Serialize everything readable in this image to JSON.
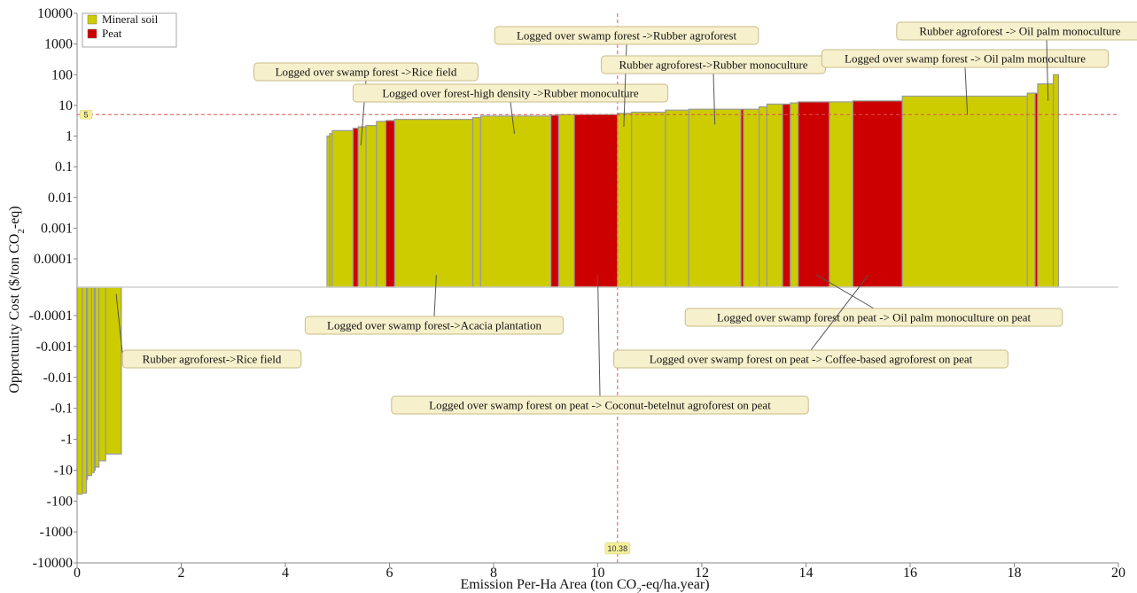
{
  "chart_data": {
    "type": "bar",
    "subtype": "marginal-abatement-cost-curve",
    "xlabel": "Emission Per-Ha Area (ton CO2-eq/ha.year)",
    "ylabel": "Opportunity Cost ($/ton CO2-eq)",
    "xlim": [
      0,
      20
    ],
    "x_ticks": [
      0,
      2,
      4,
      6,
      8,
      10,
      12,
      14,
      16,
      18,
      20
    ],
    "x_tick_labels": [
      "0",
      "2",
      "4",
      "6",
      "8",
      "10",
      "12",
      "14",
      "16",
      "18",
      "20"
    ],
    "y_scale": "symmetric-log",
    "y_ticks_positive": [
      "10000",
      "1000",
      "100",
      "10",
      "1",
      "0.1",
      "0.01",
      "0.001",
      "0.0001"
    ],
    "y_ticks_negative": [
      "-0.0001",
      "-0.001",
      "-0.01",
      "-0.1",
      "-1",
      "-10",
      "-100",
      "-1000",
      "-10000"
    ],
    "grid": false,
    "legend": {
      "position": "top-left",
      "entries": [
        {
          "name": "Mineral soil",
          "color": "#cccc00"
        },
        {
          "name": "Peat",
          "color": "#cc0000"
        }
      ]
    },
    "colors": {
      "mineral": "#cccc00",
      "peat": "#cc0000",
      "edge": "#999999",
      "reference": "#e05050"
    },
    "reference_lines": {
      "y": {
        "value": 5,
        "label": "5"
      },
      "x": {
        "value": 10.38,
        "label": "10.38"
      }
    },
    "bars": [
      {
        "x0": 0.0,
        "x1": 0.1,
        "y": -60,
        "soil": "mineral"
      },
      {
        "x0": 0.1,
        "x1": 0.18,
        "y": -55,
        "soil": "mineral"
      },
      {
        "x0": 0.18,
        "x1": 0.2,
        "y": -20,
        "soil": "peat"
      },
      {
        "x0": 0.2,
        "x1": 0.28,
        "y": -15,
        "soil": "mineral"
      },
      {
        "x0": 0.28,
        "x1": 0.33,
        "y": -12,
        "soil": "mineral"
      },
      {
        "x0": 0.33,
        "x1": 0.35,
        "y": -10,
        "soil": "peat"
      },
      {
        "x0": 0.35,
        "x1": 0.42,
        "y": -8,
        "soil": "mineral"
      },
      {
        "x0": 0.42,
        "x1": 0.55,
        "y": -5,
        "soil": "mineral"
      },
      {
        "x0": 0.55,
        "x1": 0.85,
        "y": -3,
        "soil": "mineral"
      },
      {
        "x0": 4.8,
        "x1": 4.85,
        "y": 1.0,
        "soil": "mineral"
      },
      {
        "x0": 4.85,
        "x1": 4.9,
        "y": 1.2,
        "soil": "mineral"
      },
      {
        "x0": 4.9,
        "x1": 5.3,
        "y": 1.5,
        "soil": "mineral"
      },
      {
        "x0": 5.3,
        "x1": 5.4,
        "y": 1.8,
        "soil": "peat"
      },
      {
        "x0": 5.4,
        "x1": 5.55,
        "y": 2.0,
        "soil": "mineral"
      },
      {
        "x0": 5.55,
        "x1": 5.75,
        "y": 2.2,
        "soil": "mineral"
      },
      {
        "x0": 5.75,
        "x1": 5.93,
        "y": 3.0,
        "soil": "mineral"
      },
      {
        "x0": 5.93,
        "x1": 6.1,
        "y": 3.2,
        "soil": "peat"
      },
      {
        "x0": 6.1,
        "x1": 7.6,
        "y": 3.5,
        "soil": "mineral"
      },
      {
        "x0": 7.6,
        "x1": 7.75,
        "y": 4.0,
        "soil": "mineral"
      },
      {
        "x0": 7.75,
        "x1": 9.1,
        "y": 4.5,
        "soil": "mineral"
      },
      {
        "x0": 9.1,
        "x1": 9.25,
        "y": 4.8,
        "soil": "peat"
      },
      {
        "x0": 9.25,
        "x1": 9.55,
        "y": 5.0,
        "soil": "mineral"
      },
      {
        "x0": 9.55,
        "x1": 10.38,
        "y": 5.0,
        "soil": "peat"
      },
      {
        "x0": 10.38,
        "x1": 10.65,
        "y": 5.5,
        "soil": "mineral"
      },
      {
        "x0": 10.65,
        "x1": 11.3,
        "y": 6.0,
        "soil": "mineral"
      },
      {
        "x0": 11.3,
        "x1": 11.75,
        "y": 7.0,
        "soil": "mineral"
      },
      {
        "x0": 11.75,
        "x1": 12.75,
        "y": 7.5,
        "soil": "mineral"
      },
      {
        "x0": 12.75,
        "x1": 12.8,
        "y": 7.5,
        "soil": "peat"
      },
      {
        "x0": 12.8,
        "x1": 13.1,
        "y": 7.5,
        "soil": "mineral"
      },
      {
        "x0": 13.1,
        "x1": 13.25,
        "y": 9.0,
        "soil": "mineral"
      },
      {
        "x0": 13.25,
        "x1": 13.55,
        "y": 11,
        "soil": "mineral"
      },
      {
        "x0": 13.55,
        "x1": 13.7,
        "y": 11,
        "soil": "peat"
      },
      {
        "x0": 13.7,
        "x1": 13.85,
        "y": 12,
        "soil": "mineral"
      },
      {
        "x0": 13.85,
        "x1": 14.45,
        "y": 13,
        "soil": "peat"
      },
      {
        "x0": 14.45,
        "x1": 14.9,
        "y": 13,
        "soil": "mineral"
      },
      {
        "x0": 14.9,
        "x1": 15.85,
        "y": 14,
        "soil": "peat"
      },
      {
        "x0": 15.85,
        "x1": 18.25,
        "y": 20,
        "soil": "mineral"
      },
      {
        "x0": 18.25,
        "x1": 18.4,
        "y": 25,
        "soil": "mineral"
      },
      {
        "x0": 18.4,
        "x1": 18.45,
        "y": 25,
        "soil": "peat"
      },
      {
        "x0": 18.45,
        "x1": 18.75,
        "y": 50,
        "soil": "mineral"
      },
      {
        "x0": 18.75,
        "x1": 18.85,
        "y": 100,
        "soil": "mineral"
      }
    ],
    "annotations": [
      {
        "text": "Logged over swamp forest ->Rice field",
        "x": 5.45,
        "y": 0.5
      },
      {
        "text": "Logged over  forest-high density ->Rubber monoculture",
        "x": 8.4,
        "y": 1.2
      },
      {
        "text": "Logged over swamp forest ->Rubber agroforest",
        "x": 10.5,
        "y": 2.0
      },
      {
        "text": "Rubber agroforest->Rubber monoculture",
        "x": 12.25,
        "y": 2.4
      },
      {
        "text": "Logged over swamp forest -> Oil palm monoculture",
        "x": 17.1,
        "y": 5.0
      },
      {
        "text": "Rubber agroforest -> Oil palm monoculture",
        "x": 18.65,
        "y": 14
      },
      {
        "text": "Logged over swamp forest->Acacia plantation",
        "x": 6.9,
        "y": 3e-05
      },
      {
        "text": "Logged over swamp forest on peat -> Oil palm monoculture on peat",
        "x": 14.2,
        "y": 3e-05
      },
      {
        "text": "Logged over swamp forest on peat -> Coffee-based agroforest on peat",
        "x": 15.2,
        "y": 3e-05
      },
      {
        "text": "Logged over swamp forest on peat -> Coconut-betelnut agroforest on peat",
        "x": 10.0,
        "y": 3e-05
      },
      {
        "text": "Rubber agroforest->Rice field",
        "x": 0.75,
        "y": -2e-05
      }
    ]
  }
}
